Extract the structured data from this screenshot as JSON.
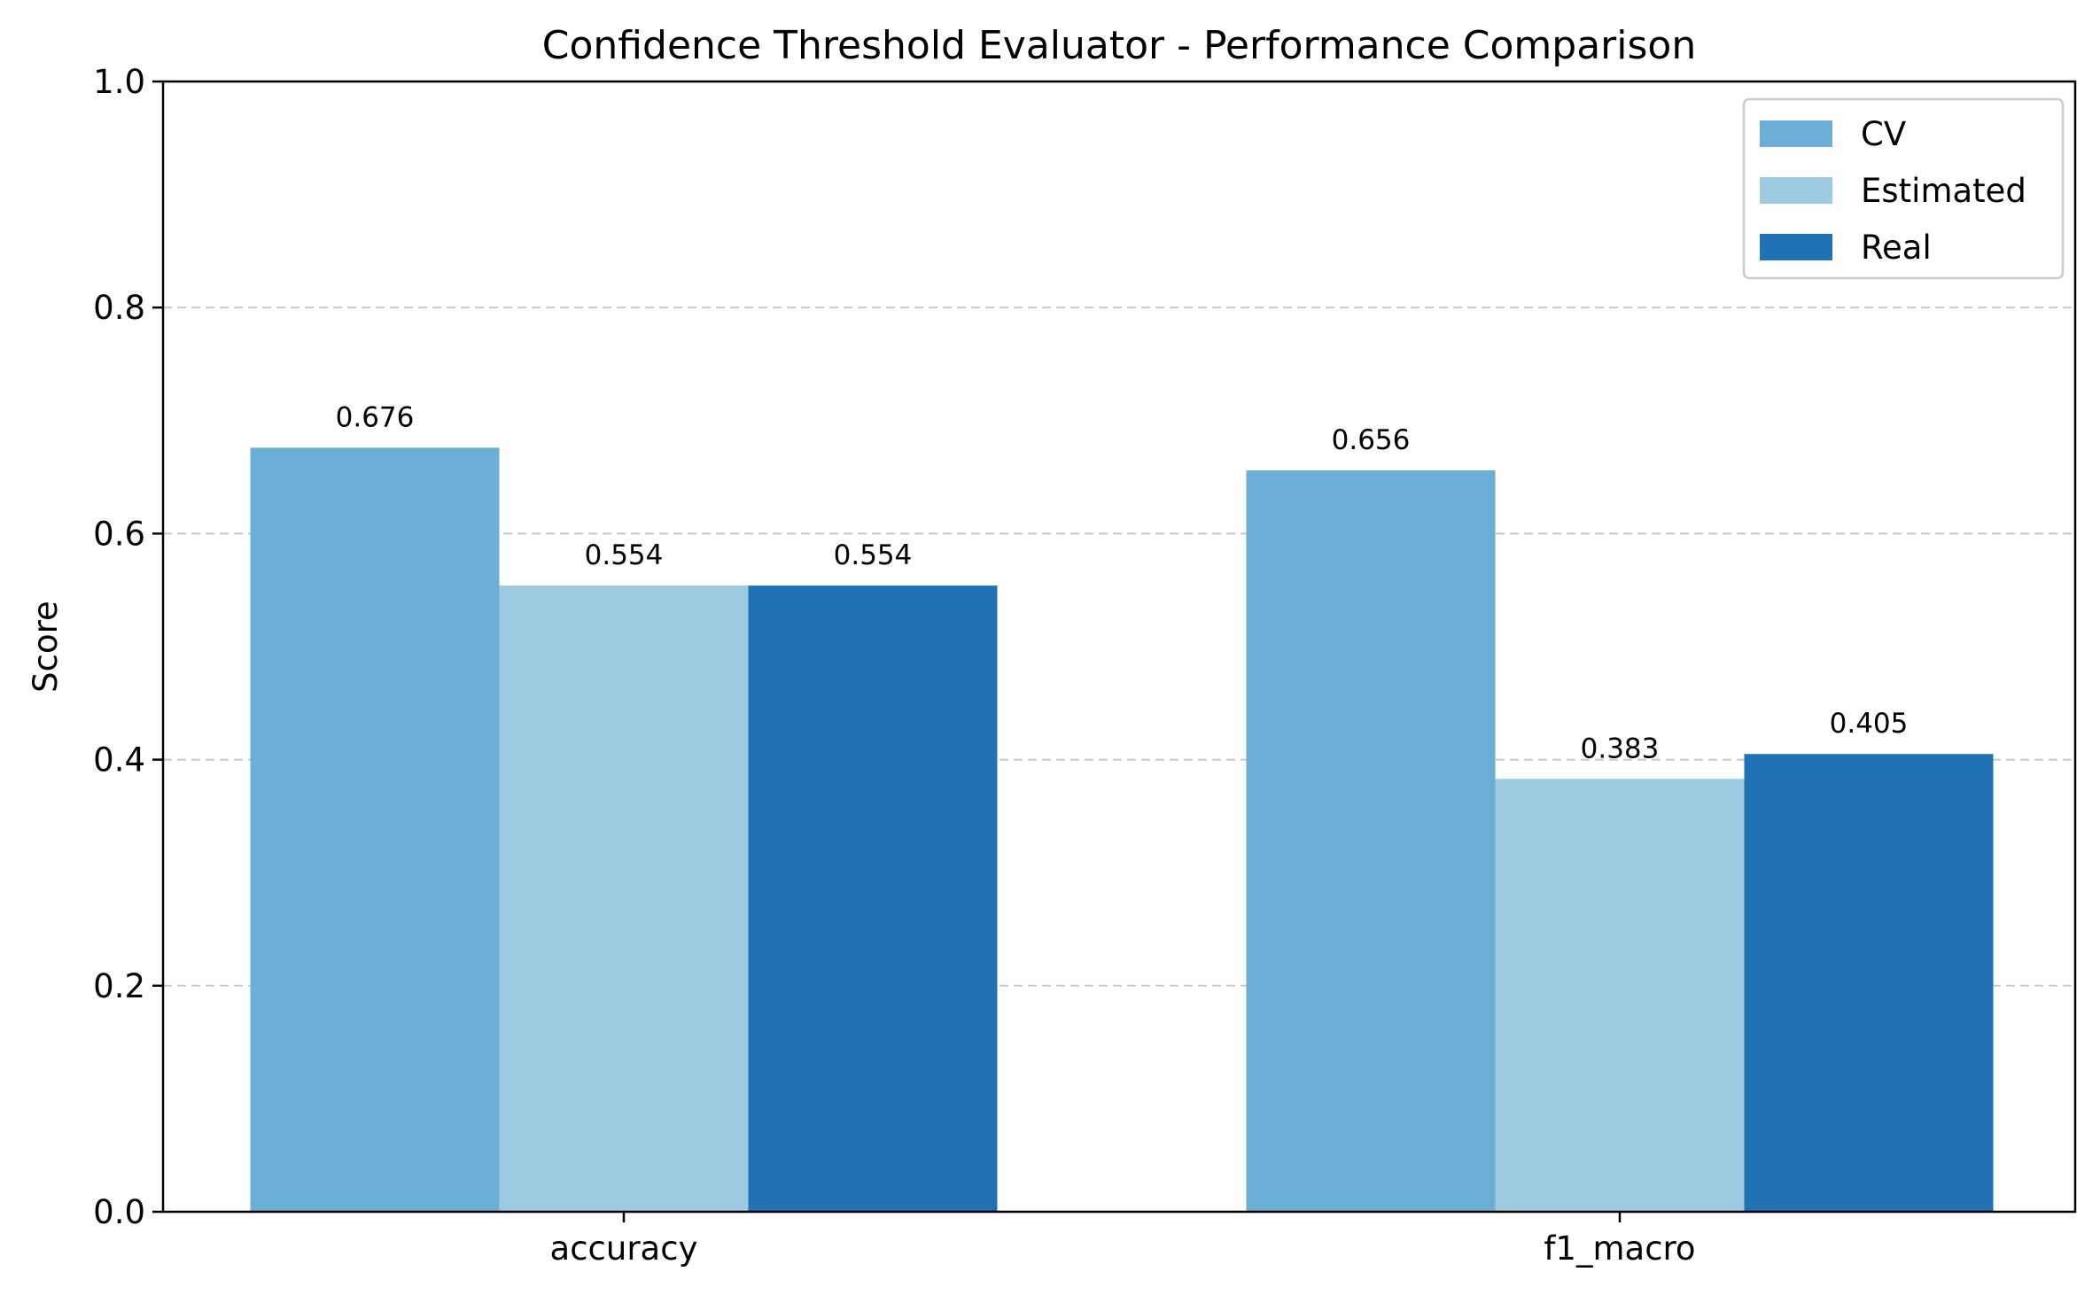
{
  "chart_data": {
    "type": "bar",
    "title": "Confidence Threshold Evaluator - Performance Comparison",
    "xlabel": "",
    "ylabel": "Score",
    "ylim": [
      0,
      1.0
    ],
    "yticks": [
      "0.0",
      "0.2",
      "0.4",
      "0.6",
      "0.8",
      "1.0"
    ],
    "grid": "y-dashed",
    "legend_position": "top-right",
    "categories": [
      "accuracy",
      "f1_macro"
    ],
    "series": [
      {
        "name": "CV",
        "color": "#6baed6",
        "values": [
          0.676,
          0.656
        ],
        "labels": [
          "0.676",
          "0.656"
        ]
      },
      {
        "name": "Estimated",
        "color": "#9ecae1",
        "values": [
          0.554,
          0.383
        ],
        "labels": [
          "0.554",
          "0.383"
        ]
      },
      {
        "name": "Real",
        "color": "#2171b5",
        "values": [
          0.554,
          0.405
        ],
        "labels": [
          "0.554",
          "0.405"
        ]
      }
    ]
  }
}
